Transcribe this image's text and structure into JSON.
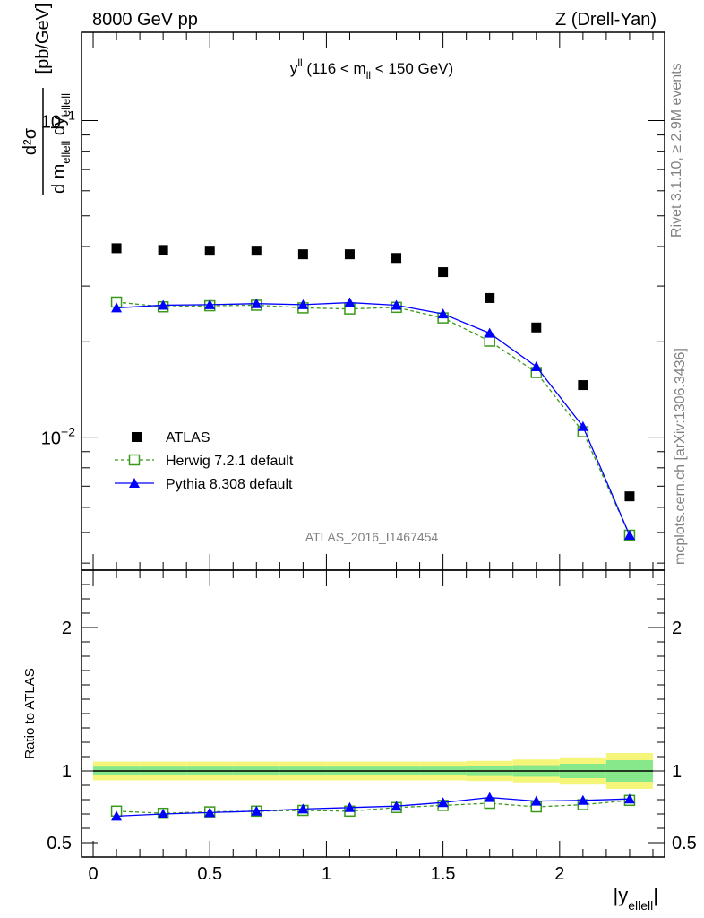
{
  "header": {
    "left": "8000 GeV pp",
    "right": "Z (Drell-Yan)"
  },
  "side_labels": {
    "rivet": "Rivet 3.1.10, ≥ 2.9M events",
    "mcplots": "mcplots.cern.ch [arXiv:1306.3436]"
  },
  "watermark": "ATLAS_2016_I1467454",
  "chart_data": {
    "type": "scatter",
    "title": {
      "main": "y",
      "main_sup": "ll",
      "range_open": " (116 < m",
      "range_sub": "ll",
      "range_close": " < 150 GeV)"
    },
    "xlabel": {
      "main": "|y",
      "sub": "ellell",
      "close": "|"
    },
    "ylabel": {
      "num": "d²σ",
      "den_d1": "d m",
      "den_sub1": "ellell",
      "den_d2": " dy",
      "den_sub2": "ellell",
      "unit": "[pb/GeV]"
    },
    "ratio_ylabel": "Ratio to ATLAS",
    "xlim": [
      -0.05,
      2.45
    ],
    "ylim": [
      0.0038,
      0.19
    ],
    "ratio_ylim": [
      0.4,
      2.4
    ],
    "y_scale": "log",
    "x_ticks": [
      {
        "v": 0,
        "label": "0"
      },
      {
        "v": 0.5,
        "label": "0.5"
      },
      {
        "v": 1,
        "label": "1"
      },
      {
        "v": 1.5,
        "label": "1.5"
      },
      {
        "v": 2,
        "label": "2"
      }
    ],
    "y_ticks": [
      {
        "v": 0.01,
        "base": "10",
        "exp": "−2"
      },
      {
        "v": 0.1,
        "base": "10",
        "exp": "−1"
      }
    ],
    "ratio_ticks": [
      {
        "v": 0.5,
        "label": "0.5"
      },
      {
        "v": 1,
        "label": "1"
      },
      {
        "v": 2,
        "label": "2"
      }
    ],
    "legend_position": "bottom-left",
    "x": [
      0.1,
      0.3,
      0.5,
      0.7,
      0.9,
      1.1,
      1.3,
      1.5,
      1.7,
      1.9,
      2.1,
      2.3
    ],
    "series": [
      {
        "name": "ATLAS",
        "color": "#000000",
        "marker": "square-filled",
        "values": [
          0.0395,
          0.039,
          0.0388,
          0.0388,
          0.0378,
          0.0378,
          0.0368,
          0.0332,
          0.0275,
          0.0222,
          0.0146,
          0.0065
        ]
      },
      {
        "name": "Herwig 7.2.1 default",
        "color": "#3a9a1a",
        "marker": "square-open",
        "line": "dashed",
        "values": [
          0.0267,
          0.0258,
          0.026,
          0.0261,
          0.0256,
          0.0254,
          0.0257,
          0.0238,
          0.0201,
          0.016,
          0.0104,
          0.0049
        ],
        "ratio": [
          0.72,
          0.705,
          0.715,
          0.72,
          0.725,
          0.72,
          0.745,
          0.76,
          0.775,
          0.75,
          0.765,
          0.795
        ]
      },
      {
        "name": "Pythia 8.308 default",
        "color": "#0000ff",
        "marker": "triangle-filled",
        "line": "solid",
        "values": [
          0.0256,
          0.0261,
          0.0262,
          0.0264,
          0.0262,
          0.0266,
          0.0261,
          0.0245,
          0.0213,
          0.0167,
          0.0108,
          0.0049
        ],
        "ratio": [
          0.685,
          0.7,
          0.71,
          0.72,
          0.735,
          0.745,
          0.755,
          0.78,
          0.815,
          0.79,
          0.795,
          0.805
        ]
      }
    ],
    "ratio_band": {
      "x_edges": [
        0.0,
        0.2,
        0.4,
        0.6,
        0.8,
        1.0,
        1.2,
        1.4,
        1.6,
        1.8,
        2.0,
        2.2,
        2.4
      ],
      "inner": [
        0.03,
        0.03,
        0.03,
        0.03,
        0.03,
        0.03,
        0.03,
        0.03,
        0.035,
        0.04,
        0.05,
        0.075
      ],
      "outer": [
        0.065,
        0.065,
        0.065,
        0.065,
        0.065,
        0.065,
        0.065,
        0.065,
        0.07,
        0.08,
        0.095,
        0.125
      ],
      "inner_color": "#86e88a",
      "outer_color": "#f5f57a"
    }
  }
}
